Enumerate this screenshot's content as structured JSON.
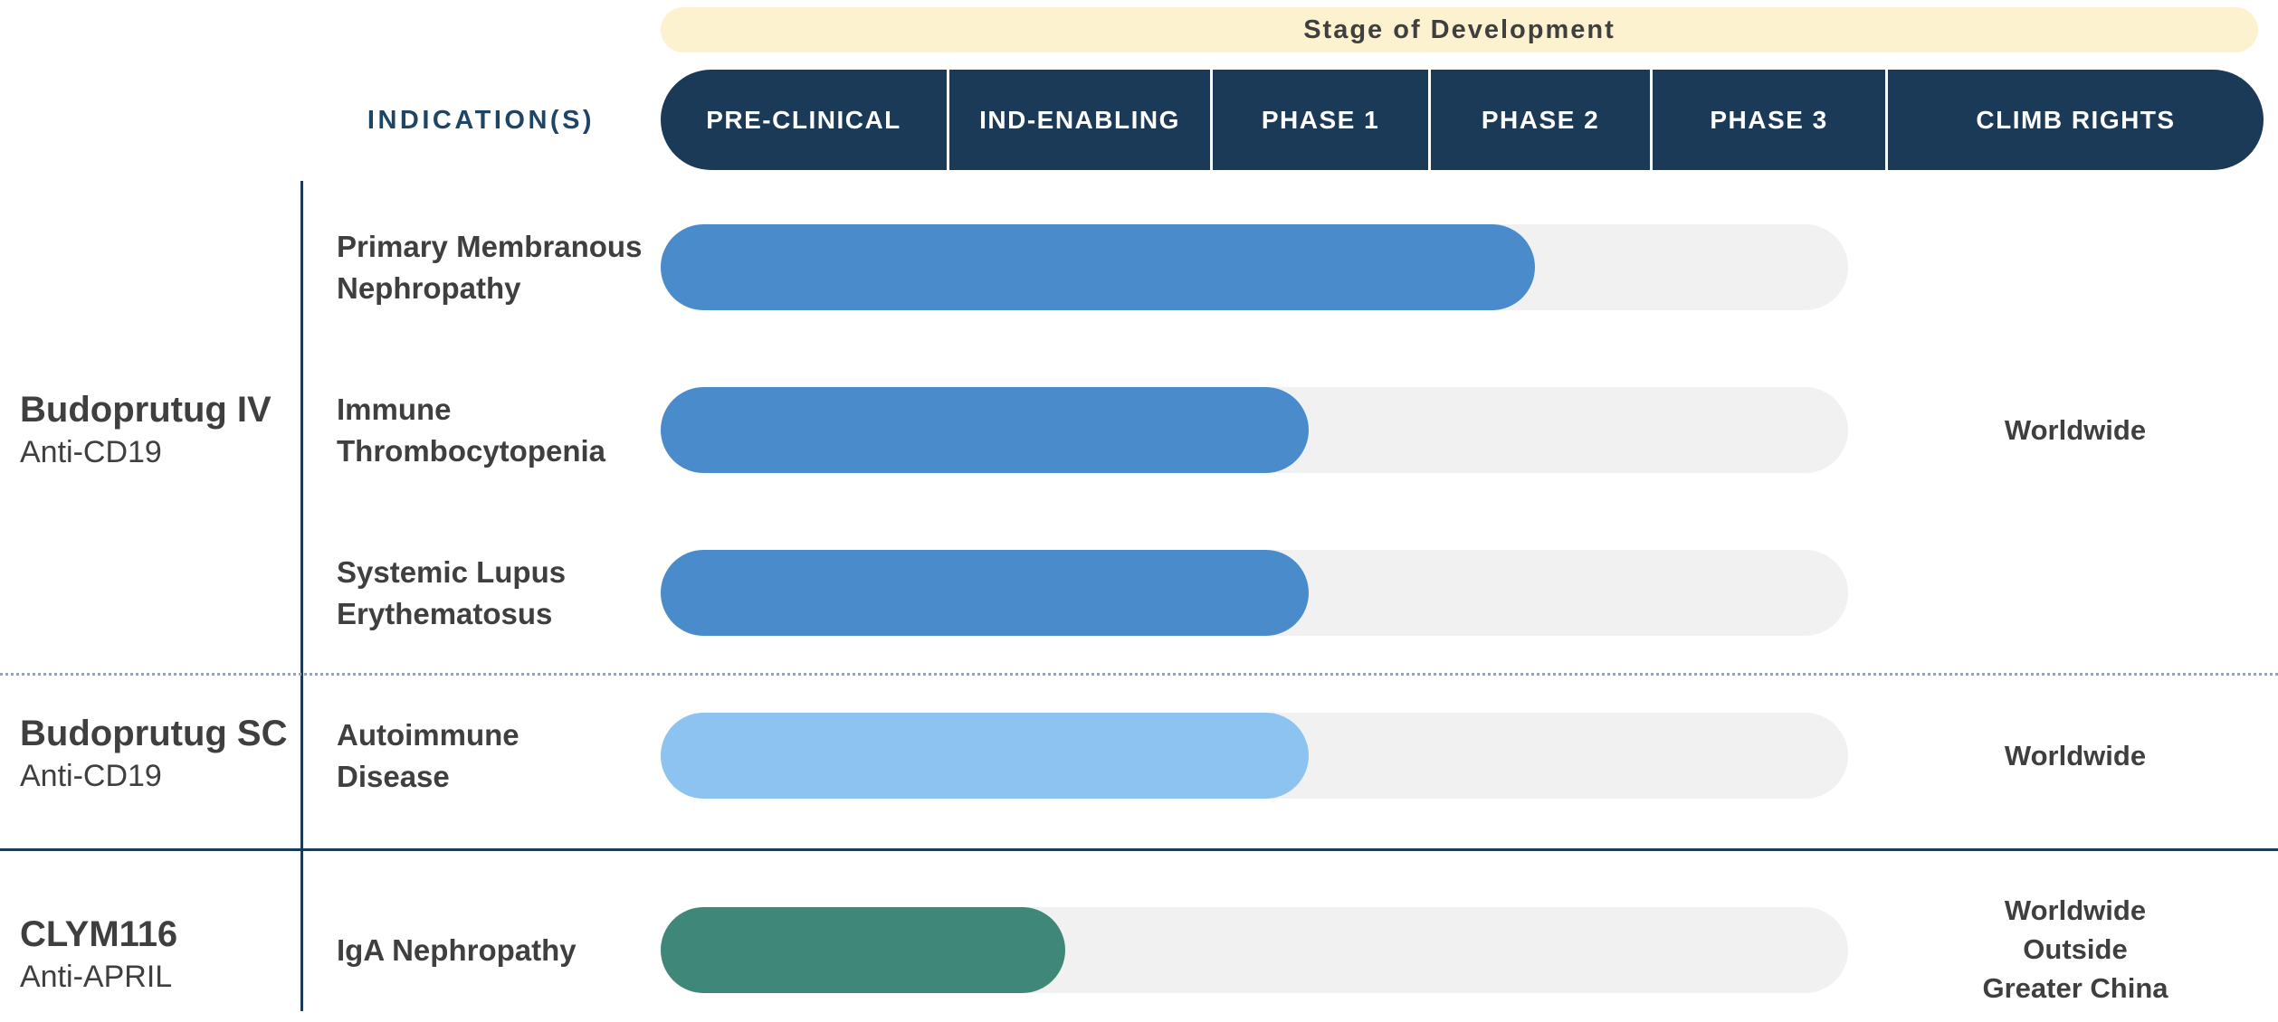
{
  "title": "Stage of Development",
  "indications_label": "INDICATION(S)",
  "stages": [
    "PRE-CLINICAL",
    "IND-ENABLING",
    "PHASE 1",
    "PHASE 2",
    "PHASE 3",
    "CLIMB RIGHTS"
  ],
  "colors": {
    "navy": "#1b3a57",
    "cream": "#fcf2d0",
    "blue": "#4a8ccb",
    "light_blue": "#8cc3f1",
    "green": "#3f8879",
    "track_gray": "#f1f1f2"
  },
  "programs": [
    {
      "name": "Budoprutug IV",
      "mechanism": "Anti-CD19",
      "rights_lines": [
        "Worldwide"
      ],
      "indications": [
        {
          "line1": "Primary Membranous",
          "line2": "Nephropathy",
          "progress_percent": 73.6,
          "bar_color": "#4a8ccb",
          "stage_reached": "PHASE 2"
        },
        {
          "line1": "Immune",
          "line2": "Thrombocytopenia",
          "progress_percent": 54.6,
          "bar_color": "#4a8ccb",
          "stage_reached": "PHASE 1"
        },
        {
          "line1": "Systemic Lupus",
          "line2": "Erythematosus",
          "progress_percent": 54.6,
          "bar_color": "#4a8ccb",
          "stage_reached": "PHASE 1"
        }
      ]
    },
    {
      "name": "Budoprutug SC",
      "mechanism": "Anti-CD19",
      "rights_lines": [
        "Worldwide"
      ],
      "indications": [
        {
          "line1": "Autoimmune",
          "line2": "Disease",
          "progress_percent": 54.6,
          "bar_color": "#8cc3f1",
          "stage_reached": "PHASE 1"
        }
      ]
    },
    {
      "name": "CLYM116",
      "mechanism": "Anti-APRIL",
      "rights_lines": [
        "Worldwide",
        "Outside",
        "Greater China"
      ],
      "indications": [
        {
          "line1": "IgA Nephropathy",
          "line2": "",
          "progress_percent": 34.1,
          "bar_color": "#3f8879",
          "stage_reached": "IND-ENABLING"
        }
      ]
    }
  ],
  "chart_data": {
    "type": "bar",
    "title": "Stage of Development",
    "orientation": "horizontal",
    "x_axis_stages": [
      "PRE-CLINICAL",
      "IND-ENABLING",
      "PHASE 1",
      "PHASE 2",
      "PHASE 3",
      "CLIMB RIGHTS"
    ],
    "categories": [
      "Primary Membranous Nephropathy",
      "Immune Thrombocytopenia",
      "Systemic Lupus Erythematosus",
      "Autoimmune Disease",
      "IgA Nephropathy"
    ],
    "series": [
      {
        "program": "Budoprutug IV (Anti-CD19)",
        "indication": "Primary Membranous Nephropathy",
        "progress_fraction": 0.74,
        "stage_reached": "PHASE 2",
        "climb_rights": "Worldwide",
        "color": "#4a8ccb"
      },
      {
        "program": "Budoprutug IV (Anti-CD19)",
        "indication": "Immune Thrombocytopenia",
        "progress_fraction": 0.55,
        "stage_reached": "PHASE 1",
        "climb_rights": "Worldwide",
        "color": "#4a8ccb"
      },
      {
        "program": "Budoprutug IV (Anti-CD19)",
        "indication": "Systemic Lupus Erythematosus",
        "progress_fraction": 0.55,
        "stage_reached": "PHASE 1",
        "climb_rights": "Worldwide",
        "color": "#4a8ccb"
      },
      {
        "program": "Budoprutug SC (Anti-CD19)",
        "indication": "Autoimmune Disease",
        "progress_fraction": 0.55,
        "stage_reached": "PHASE 1",
        "climb_rights": "Worldwide",
        "color": "#8cc3f1"
      },
      {
        "program": "CLYM116 (Anti-APRIL)",
        "indication": "IgA Nephropathy",
        "progress_fraction": 0.34,
        "stage_reached": "IND-ENABLING",
        "climb_rights": "Worldwide Outside Greater China",
        "color": "#3f8879"
      }
    ],
    "legend": "none",
    "grid": "off"
  }
}
